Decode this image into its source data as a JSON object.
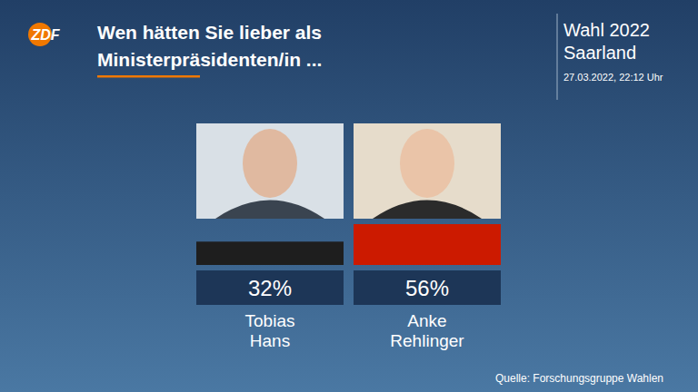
{
  "chart_data": {
    "type": "bar",
    "title": "Wen hätten Sie lieber als Ministerpräsidenten/in ...",
    "logo": "ZDF",
    "election": "Wahl 2022",
    "region": "Saarland",
    "timestamp": "27.03.2022, 22:12 Uhr",
    "source": "Quelle: Forschungsgruppe Wahlen",
    "categories": [
      "Tobias Hans",
      "Anke Rehlinger"
    ],
    "values": [
      32,
      56
    ],
    "value_labels": [
      "32%",
      "56%"
    ],
    "colors": [
      "#1e1e1e",
      "#cc1a00"
    ],
    "data_labels": true,
    "tick_labels": false
  }
}
